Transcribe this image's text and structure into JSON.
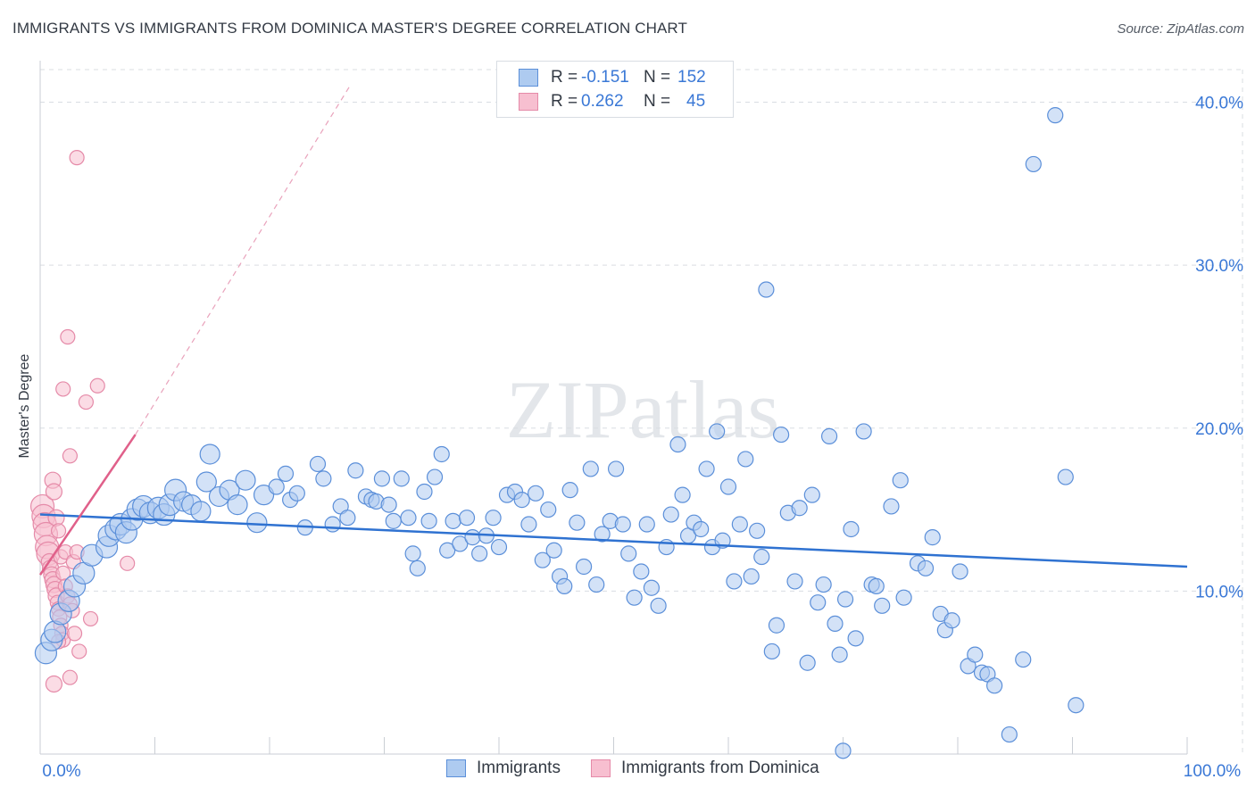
{
  "title": "IMMIGRANTS VS IMMIGRANTS FROM DOMINICA MASTER'S DEGREE CORRELATION CHART",
  "source": "Source: ZipAtlas.com",
  "watermark": "ZIPatlas",
  "legend": {
    "rows": [
      {
        "r_label": "R =",
        "r_value": "-0.151",
        "n_label": "N =",
        "n_value": "152"
      },
      {
        "r_label": "R =",
        "r_value": "0.262",
        "n_label": "N =",
        "n_value": "45"
      }
    ]
  },
  "bottom_legend": {
    "immigrants": "Immigrants",
    "dominica": "Immigrants from Dominica"
  },
  "colors": {
    "blue_fill": "#aecbf0",
    "blue_stroke": "#5b8fd9",
    "blue_line": "#2f72d1",
    "pink_fill": "#f7bfd0",
    "pink_stroke": "#e58aa8",
    "pink_line": "#e0608a",
    "grid": "#d9dde2",
    "tick_label": "#3a78d6"
  },
  "chart_data": {
    "type": "scatter",
    "title": "IMMIGRANTS VS IMMIGRANTS FROM DOMINICA MASTER'S DEGREE CORRELATION CHART",
    "xlabel": "",
    "ylabel": "Master's Degree",
    "xlim": [
      0,
      100
    ],
    "ylim": [
      0,
      42
    ],
    "x_tick_labels": [
      {
        "value": 0,
        "label": "0.0%"
      },
      {
        "value": 100,
        "label": "100.0%"
      }
    ],
    "y_tick_labels": [
      {
        "value": 10,
        "label": "10.0%"
      },
      {
        "value": 20,
        "label": "20.0%"
      },
      {
        "value": 30,
        "label": "30.0%"
      },
      {
        "value": 40,
        "label": "40.0%"
      }
    ],
    "series": [
      {
        "name": "Immigrants",
        "R": -0.151,
        "N": 152,
        "trend": {
          "x0": 0,
          "y0": 14.7,
          "x1": 100,
          "y1": 11.5
        },
        "points": [
          [
            0.5,
            6.2
          ],
          [
            1,
            7
          ],
          [
            1.3,
            7.5
          ],
          [
            1.8,
            8.6
          ],
          [
            2.5,
            9.4
          ],
          [
            3,
            10.3
          ],
          [
            3.8,
            11.1
          ],
          [
            4.5,
            12.2
          ],
          [
            5.8,
            12.7
          ],
          [
            6,
            13.4
          ],
          [
            6.6,
            13.8
          ],
          [
            7,
            14.1
          ],
          [
            7.5,
            13.6
          ],
          [
            8,
            14.4
          ],
          [
            8.5,
            15
          ],
          [
            9,
            15.2
          ],
          [
            9.6,
            14.8
          ],
          [
            10.3,
            15.1
          ],
          [
            10.8,
            14.7
          ],
          [
            11.3,
            15.3
          ],
          [
            11.8,
            16.2
          ],
          [
            12.5,
            15.5
          ],
          [
            13.2,
            15.3
          ],
          [
            14,
            14.9
          ],
          [
            14.5,
            16.7
          ],
          [
            14.8,
            18.4
          ],
          [
            15.6,
            15.8
          ],
          [
            16.5,
            16.2
          ],
          [
            17.2,
            15.3
          ],
          [
            17.9,
            16.8
          ],
          [
            18.9,
            14.2
          ],
          [
            19.5,
            15.9
          ],
          [
            20.6,
            16.4
          ],
          [
            21.4,
            17.2
          ],
          [
            21.8,
            15.6
          ],
          [
            22.4,
            16
          ],
          [
            23.1,
            13.9
          ],
          [
            24.2,
            17.8
          ],
          [
            24.7,
            16.9
          ],
          [
            25.5,
            14.1
          ],
          [
            26.2,
            15.2
          ],
          [
            26.8,
            14.5
          ],
          [
            27.5,
            17.4
          ],
          [
            28.4,
            15.8
          ],
          [
            28.9,
            15.6
          ],
          [
            29.3,
            15.5
          ],
          [
            29.8,
            16.9
          ],
          [
            30.4,
            15.3
          ],
          [
            30.8,
            14.3
          ],
          [
            31.5,
            16.9
          ],
          [
            32.1,
            14.5
          ],
          [
            32.5,
            12.3
          ],
          [
            32.9,
            11.4
          ],
          [
            33.5,
            16.1
          ],
          [
            33.9,
            14.3
          ],
          [
            34.4,
            17
          ],
          [
            35,
            18.4
          ],
          [
            35.5,
            12.5
          ],
          [
            36,
            14.3
          ],
          [
            36.6,
            12.9
          ],
          [
            37.2,
            14.5
          ],
          [
            37.7,
            13.3
          ],
          [
            38.3,
            12.3
          ],
          [
            38.9,
            13.4
          ],
          [
            39.5,
            14.5
          ],
          [
            40,
            12.7
          ],
          [
            40.7,
            15.9
          ],
          [
            41.4,
            16.1
          ],
          [
            42,
            15.6
          ],
          [
            42.6,
            14.1
          ],
          [
            43.2,
            16
          ],
          [
            43.8,
            11.9
          ],
          [
            44.3,
            15
          ],
          [
            44.8,
            12.5
          ],
          [
            45.3,
            10.9
          ],
          [
            45.7,
            10.3
          ],
          [
            46.2,
            16.2
          ],
          [
            46.8,
            14.2
          ],
          [
            47.4,
            11.5
          ],
          [
            48,
            17.5
          ],
          [
            48.5,
            10.4
          ],
          [
            49,
            13.5
          ],
          [
            49.7,
            14.3
          ],
          [
            50.2,
            17.5
          ],
          [
            50.8,
            14.1
          ],
          [
            51.3,
            12.3
          ],
          [
            51.8,
            9.6
          ],
          [
            52.4,
            11.2
          ],
          [
            52.9,
            14.1
          ],
          [
            53.3,
            10.2
          ],
          [
            53.9,
            9.1
          ],
          [
            54.6,
            12.7
          ],
          [
            55,
            14.7
          ],
          [
            55.6,
            19
          ],
          [
            56,
            15.9
          ],
          [
            56.5,
            13.4
          ],
          [
            57,
            14.2
          ],
          [
            57.6,
            13.8
          ],
          [
            58.1,
            17.5
          ],
          [
            58.6,
            12.7
          ],
          [
            59,
            19.8
          ],
          [
            59.5,
            13.1
          ],
          [
            60,
            16.4
          ],
          [
            60.5,
            10.6
          ],
          [
            61,
            14.1
          ],
          [
            61.5,
            18.1
          ],
          [
            62,
            10.9
          ],
          [
            62.5,
            13.7
          ],
          [
            62.9,
            12.1
          ],
          [
            63.3,
            28.5
          ],
          [
            63.8,
            6.3
          ],
          [
            64.2,
            7.9
          ],
          [
            64.6,
            19.6
          ],
          [
            65.2,
            14.8
          ],
          [
            65.8,
            10.6
          ],
          [
            66.2,
            15.1
          ],
          [
            66.9,
            5.6
          ],
          [
            67.3,
            15.9
          ],
          [
            67.8,
            9.3
          ],
          [
            68.3,
            10.4
          ],
          [
            68.8,
            19.5
          ],
          [
            69.3,
            8
          ],
          [
            69.7,
            6.1
          ],
          [
            70.2,
            9.5
          ],
          [
            70.7,
            13.8
          ],
          [
            71.1,
            7.1
          ],
          [
            71.8,
            19.8
          ],
          [
            72.5,
            10.4
          ],
          [
            72.9,
            10.3
          ],
          [
            73.4,
            9.1
          ],
          [
            74.2,
            15.2
          ],
          [
            75,
            16.8
          ],
          [
            75.3,
            9.6
          ],
          [
            76.5,
            11.7
          ],
          [
            77.2,
            11.4
          ],
          [
            77.8,
            13.3
          ],
          [
            78.5,
            8.6
          ],
          [
            78.9,
            7.6
          ],
          [
            79.5,
            8.2
          ],
          [
            80.2,
            11.2
          ],
          [
            80.9,
            5.4
          ],
          [
            81.5,
            6.1
          ],
          [
            82.1,
            5
          ],
          [
            82.6,
            4.9
          ],
          [
            83.2,
            4.2
          ],
          [
            84.5,
            1.2
          ],
          [
            85.7,
            5.8
          ],
          [
            86.6,
            36.2
          ],
          [
            88.5,
            39.2
          ],
          [
            89.4,
            17
          ],
          [
            90.3,
            3
          ],
          [
            70,
            0.2
          ]
        ]
      },
      {
        "name": "Immigrants from Dominica",
        "R": 0.262,
        "N": 45,
        "trend": {
          "x0": 0,
          "y0": 11,
          "x1": 8.3,
          "y1": 19.6
        },
        "trend_extension": {
          "x0": 8.3,
          "y0": 19.6,
          "x1": 27,
          "y1": 41
        },
        "points": [
          [
            0.2,
            15.2
          ],
          [
            0.3,
            14.6
          ],
          [
            0.4,
            14.1
          ],
          [
            0.5,
            13.5
          ],
          [
            0.6,
            12.7
          ],
          [
            0.7,
            12.3
          ],
          [
            0.8,
            11.8
          ],
          [
            0.9,
            11.4
          ],
          [
            1,
            11
          ],
          [
            1.1,
            10.7
          ],
          [
            1.2,
            10.4
          ],
          [
            1.3,
            10.1
          ],
          [
            1.4,
            9.7
          ],
          [
            1.5,
            9.3
          ],
          [
            1.6,
            8.9
          ],
          [
            1.7,
            8.4
          ],
          [
            1.8,
            7.9
          ],
          [
            1.9,
            7.4
          ],
          [
            2,
            7
          ],
          [
            1.1,
            16.8
          ],
          [
            1.2,
            16.1
          ],
          [
            1.4,
            14.5
          ],
          [
            1.6,
            13.7
          ],
          [
            1.8,
            12.1
          ],
          [
            2,
            11.1
          ],
          [
            2.2,
            10.3
          ],
          [
            2.4,
            9.7
          ],
          [
            2.6,
            9.2
          ],
          [
            2.8,
            8.8
          ],
          [
            3,
            7.4
          ],
          [
            1.2,
            4.3
          ],
          [
            1.6,
            6.9
          ],
          [
            2.2,
            12.4
          ],
          [
            2.4,
            25.6
          ],
          [
            2.6,
            18.3
          ],
          [
            2.9,
            11.8
          ],
          [
            3.2,
            12.4
          ],
          [
            3.4,
            6.3
          ],
          [
            2,
            22.4
          ],
          [
            3.2,
            36.6
          ],
          [
            4,
            21.6
          ],
          [
            4.4,
            8.3
          ],
          [
            5,
            22.6
          ],
          [
            7.6,
            11.7
          ],
          [
            2.6,
            4.7
          ]
        ]
      }
    ]
  }
}
